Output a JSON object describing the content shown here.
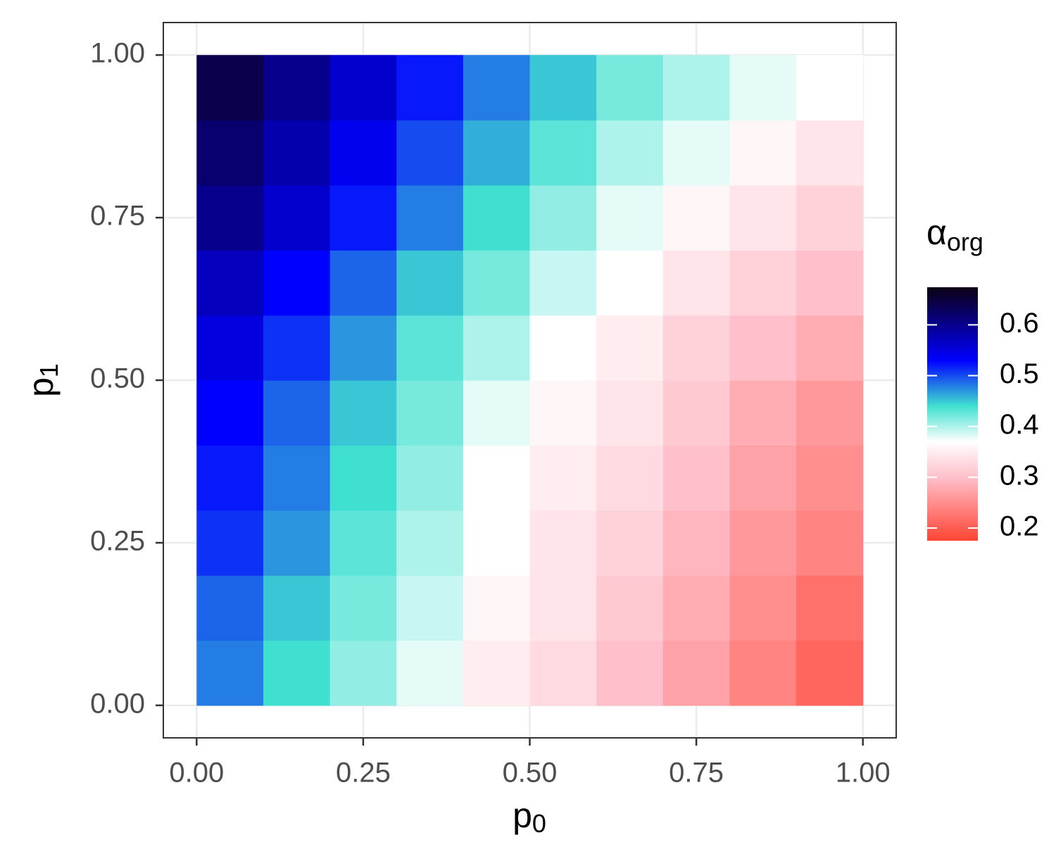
{
  "chart_data": {
    "type": "heatmap",
    "xlabel": "p",
    "xlabel_sub": "0",
    "ylabel": "p",
    "ylabel_sub": "1",
    "legend_title": "α",
    "legend_title_sub": "org",
    "x": [
      0.05,
      0.15,
      0.25,
      0.35,
      0.45,
      0.55,
      0.65,
      0.75,
      0.85,
      0.95
    ],
    "y": [
      0.05,
      0.15,
      0.25,
      0.35,
      0.45,
      0.55,
      0.65,
      0.75,
      0.85,
      0.95
    ],
    "z": [
      [
        0.48,
        0.44,
        0.41,
        0.38,
        0.35,
        0.33,
        0.3,
        0.27,
        0.24,
        0.21
      ],
      [
        0.49,
        0.45,
        0.42,
        0.39,
        0.36,
        0.34,
        0.31,
        0.28,
        0.25,
        0.22
      ],
      [
        0.51,
        0.47,
        0.43,
        0.4,
        0.37,
        0.34,
        0.32,
        0.29,
        0.26,
        0.24
      ],
      [
        0.52,
        0.48,
        0.44,
        0.41,
        0.37,
        0.35,
        0.33,
        0.3,
        0.27,
        0.25
      ],
      [
        0.53,
        0.49,
        0.45,
        0.42,
        0.38,
        0.36,
        0.34,
        0.31,
        0.28,
        0.26
      ],
      [
        0.55,
        0.51,
        0.47,
        0.43,
        0.4,
        0.37,
        0.35,
        0.32,
        0.3,
        0.28
      ],
      [
        0.57,
        0.53,
        0.49,
        0.45,
        0.42,
        0.39,
        0.37,
        0.34,
        0.32,
        0.3
      ],
      [
        0.6,
        0.56,
        0.52,
        0.48,
        0.44,
        0.41,
        0.38,
        0.36,
        0.34,
        0.32
      ],
      [
        0.62,
        0.58,
        0.54,
        0.5,
        0.46,
        0.43,
        0.4,
        0.38,
        0.36,
        0.34
      ],
      [
        0.64,
        0.6,
        0.56,
        0.52,
        0.48,
        0.45,
        0.42,
        0.4,
        0.38,
        0.37
      ]
    ],
    "xlim": [
      -0.05,
      1.05
    ],
    "ylim": [
      -0.05,
      1.05
    ],
    "xticks": [
      {
        "value": 0,
        "label": "0.00"
      },
      0.25,
      {
        "value": 0.5,
        "label": "0.50"
      },
      0.75,
      {
        "value": 1,
        "label": "1.00"
      }
    ],
    "yticks": [
      {
        "value": 0,
        "label": "0.00"
      },
      0.25,
      {
        "value": 0.5,
        "label": "0.50"
      },
      0.75,
      {
        "value": 1,
        "label": "1.00"
      }
    ],
    "zlim": [
      0.175,
      0.674
    ],
    "zticks": [
      0.2,
      0.3,
      0.4,
      0.5,
      0.6
    ],
    "colorscale": [
      [
        0.175,
        "#ff4433"
      ],
      [
        0.3,
        "#ffc0cb"
      ],
      [
        0.37,
        "#ffffff"
      ],
      [
        0.44,
        "#40e0d0"
      ],
      [
        0.53,
        "#0000ff"
      ],
      [
        0.674,
        "#0d0014"
      ]
    ],
    "grid": true
  }
}
